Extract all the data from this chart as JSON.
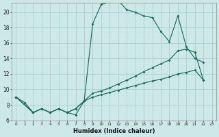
{
  "xlabel": "Humidex (Indice chaleur)",
  "bg_color": "#cce9e7",
  "grid_color": "#aad0ce",
  "line_color": "#1a6b5e",
  "xlim": [
    -0.5,
    23.5
  ],
  "ylim": [
    6,
    21.2
  ],
  "xticks": [
    0,
    1,
    2,
    3,
    4,
    5,
    6,
    7,
    8,
    9,
    10,
    11,
    12,
    13,
    14,
    15,
    16,
    17,
    18,
    19,
    20,
    21,
    22,
    23
  ],
  "yticks": [
    6,
    8,
    10,
    12,
    14,
    16,
    18,
    20
  ],
  "line1_x": [
    0,
    1,
    2,
    3,
    4,
    5,
    6,
    7,
    8,
    9,
    10,
    11,
    12,
    13,
    14,
    15,
    16,
    17,
    18,
    19,
    20,
    21,
    22
  ],
  "line1_y": [
    9.0,
    8.3,
    7.0,
    7.5,
    7.0,
    7.5,
    7.0,
    6.7,
    8.5,
    18.5,
    21.0,
    21.3,
    21.5,
    20.3,
    20.0,
    19.5,
    19.3,
    17.5,
    16.2,
    19.5,
    15.5,
    14.0,
    13.5
  ],
  "line2_x": [
    0,
    2,
    3,
    4,
    5,
    6,
    7,
    8,
    9,
    10,
    11,
    12,
    13,
    14,
    15,
    16,
    17,
    18,
    19,
    20,
    21,
    22
  ],
  "line2_y": [
    9.0,
    7.0,
    7.5,
    7.0,
    7.5,
    7.0,
    7.5,
    8.5,
    9.5,
    9.8,
    10.2,
    10.7,
    11.2,
    11.7,
    12.3,
    12.8,
    13.3,
    13.8,
    15.0,
    15.2,
    14.8,
    11.2
  ],
  "line3_x": [
    0,
    2,
    3,
    4,
    5,
    6,
    7,
    8,
    9,
    10,
    11,
    12,
    13,
    14,
    15,
    16,
    17,
    18,
    19,
    20,
    21,
    22
  ],
  "line3_y": [
    9.0,
    7.0,
    7.5,
    7.0,
    7.5,
    7.0,
    7.5,
    8.5,
    9.0,
    9.3,
    9.6,
    9.9,
    10.2,
    10.5,
    10.8,
    11.1,
    11.3,
    11.6,
    12.0,
    12.2,
    12.5,
    11.2
  ]
}
